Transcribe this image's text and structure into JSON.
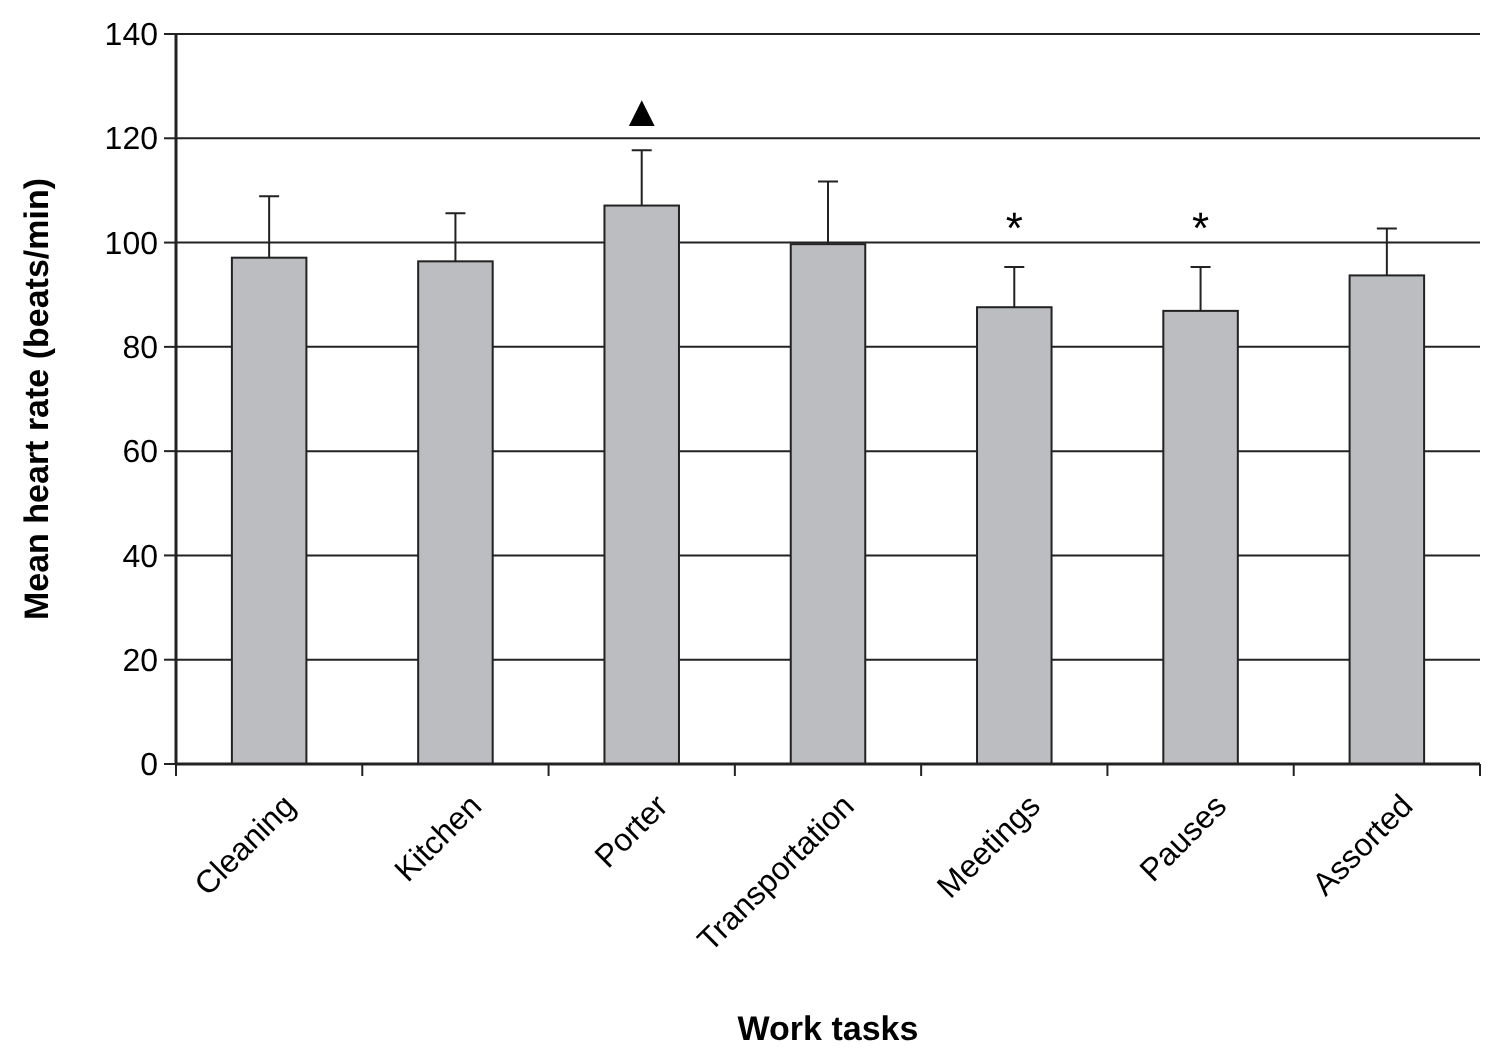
{
  "chart_data": {
    "type": "bar",
    "xlabel": "Work tasks",
    "ylabel": "Mean heart rate  (beats/min)",
    "categories": [
      "Cleaning",
      "Kitchen",
      "Porter",
      "Transportation",
      "Meetings",
      "Pauses",
      "Assorted"
    ],
    "values": [
      97.1,
      96.4,
      107.1,
      99.7,
      87.6,
      86.9,
      93.7
    ],
    "errors": [
      [
        97.1,
        108.9
      ],
      [
        96.4,
        105.6
      ],
      [
        107.1,
        117.7
      ],
      [
        99.7,
        111.7
      ],
      [
        87.6,
        95.3
      ],
      [
        86.9,
        95.3
      ],
      [
        93.7,
        102.7
      ]
    ],
    "color": "#bcbdc1",
    "ylim": [
      0,
      140
    ],
    "yticks": [
      0,
      20,
      40,
      60,
      80,
      100,
      120,
      140
    ],
    "grid": "y",
    "value_labels": [
      null,
      null,
      "▲",
      null,
      "*",
      "*",
      null
    ]
  }
}
